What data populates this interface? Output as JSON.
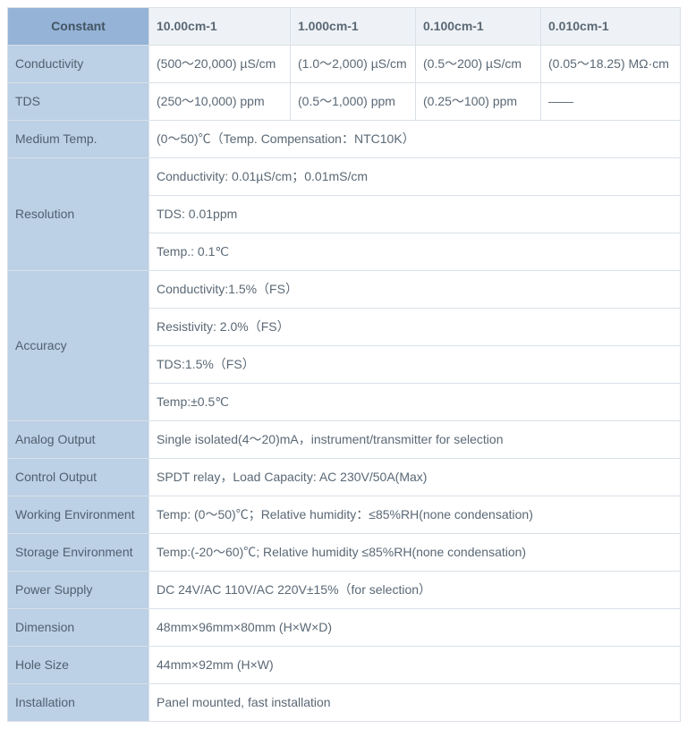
{
  "header": {
    "constant": "Constant",
    "cols": [
      "10.00cm-1",
      "1.000cm-1",
      "0.100cm-1",
      "0.010cm-1"
    ]
  },
  "rows": {
    "conductivity": {
      "label": "Conductivity",
      "c1": "(500～20,000) µS/cm",
      "c2": "(1.0～2,000) µS/cm",
      "c3": "(0.5～200) µS/cm",
      "c4": "(0.05～18.25) MΩ·cm"
    },
    "tds": {
      "label": "TDS",
      "c1": "(250～10,000) ppm",
      "c2": "(0.5～1,000) ppm",
      "c3": "(0.25～100) ppm",
      "c4": "——"
    },
    "medium_temp": {
      "label": "Medium Temp.",
      "val": "(0～50)℃（Temp. Compensation：NTC10K）"
    },
    "resolution": {
      "label": "Resolution",
      "l1": "Conductivity: 0.01µS/cm；0.01mS/cm",
      "l2": "TDS: 0.01ppm",
      "l3": "Temp.: 0.1℃"
    },
    "accuracy": {
      "label": "Accuracy",
      "l1": "Conductivity:1.5%（FS）",
      "l2": "Resistivity: 2.0%（FS）",
      "l3": "TDS:1.5%（FS）",
      "l4": "Temp:±0.5℃"
    },
    "analog_output": {
      "label": "Analog Output",
      "val": "Single isolated(4～20)mA，instrument/transmitter for selection"
    },
    "control_output": {
      "label": "Control Output",
      "val": "SPDT relay，Load Capacity: AC 230V/50A(Max)"
    },
    "working_env": {
      "label": "Working Environment",
      "val": "Temp: (0～50)℃；Relative humidity：≤85%RH(none condensation)"
    },
    "storage_env": {
      "label": "Storage Environment",
      "val": "Temp:(-20～60)℃; Relative humidity ≤85%RH(none condensation)"
    },
    "power_supply": {
      "label": "Power Supply",
      "val": "DC 24V/AC 110V/AC 220V±15%（for selection）"
    },
    "dimension": {
      "label": "Dimension",
      "val": "48mm×96mm×80mm (H×W×D)"
    },
    "hole_size": {
      "label": "Hole Size",
      "val": "44mm×92mm (H×W)"
    },
    "installation": {
      "label": "Installation",
      "val": "Panel mounted, fast installation"
    }
  }
}
